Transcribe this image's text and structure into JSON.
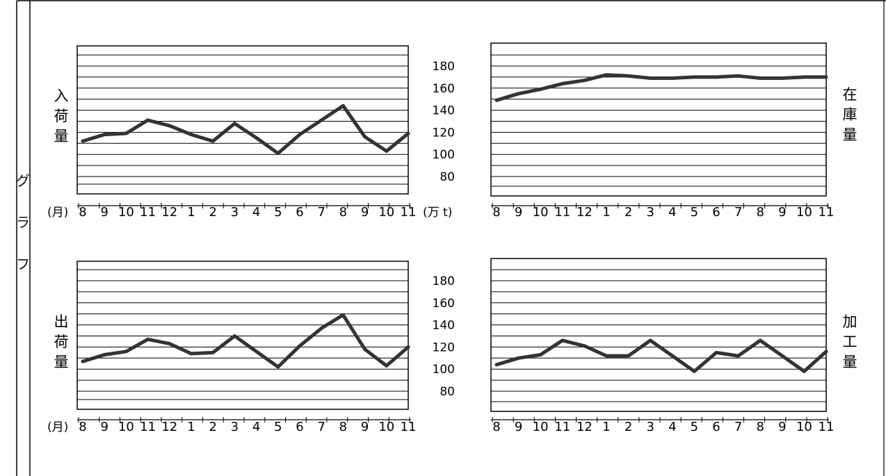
{
  "side_label": [
    "グ",
    "ラ",
    "フ"
  ],
  "shared": {
    "months": [
      "8",
      "9",
      "10",
      "11",
      "12",
      "1",
      "2",
      "3",
      "4",
      "5",
      "6",
      "7",
      "8",
      "9",
      "10",
      "11"
    ],
    "month_unit": "(月)",
    "ton_unit": "(万 t)",
    "yticks": [
      "180",
      "160",
      "140",
      "120",
      "100",
      "80"
    ]
  },
  "chart_data": [
    {
      "type": "line",
      "title_vertical": [
        "入",
        "荷",
        "量"
      ],
      "x": [
        "8",
        "9",
        "10",
        "11",
        "12",
        "1",
        "2",
        "3",
        "4",
        "5",
        "6",
        "7",
        "8",
        "9",
        "10",
        "11"
      ],
      "series": [
        {
          "values": [
            112,
            118,
            119,
            131,
            126,
            118,
            112,
            128,
            115,
            101,
            118,
            131,
            144,
            116,
            103,
            119
          ]
        }
      ],
      "ylim": [
        70,
        200
      ],
      "grid": true
    },
    {
      "type": "line",
      "title_vertical": [
        "在",
        "庫",
        "量"
      ],
      "x": [
        "8",
        "9",
        "10",
        "11",
        "12",
        "1",
        "2",
        "3",
        "4",
        "5",
        "6",
        "7",
        "8",
        "9",
        "10",
        "11"
      ],
      "series": [
        {
          "values": [
            149,
            155,
            159,
            164,
            167,
            172,
            171,
            169,
            169,
            170,
            170,
            171,
            169,
            169,
            170,
            170
          ]
        }
      ],
      "ylim": [
        70,
        200
      ],
      "grid": true
    },
    {
      "type": "line",
      "title_vertical": [
        "出",
        "荷",
        "量"
      ],
      "x": [
        "8",
        "9",
        "10",
        "11",
        "12",
        "1",
        "2",
        "3",
        "4",
        "5",
        "6",
        "7",
        "8",
        "9",
        "10",
        "11"
      ],
      "series": [
        {
          "values": [
            107,
            113,
            116,
            127,
            123,
            114,
            115,
            130,
            116,
            102,
            121,
            137,
            149,
            118,
            103,
            120
          ]
        }
      ],
      "ylim": [
        70,
        200
      ],
      "grid": true
    },
    {
      "type": "line",
      "title_vertical": [
        "加",
        "工",
        "量"
      ],
      "x": [
        "8",
        "9",
        "10",
        "11",
        "12",
        "1",
        "2",
        "3",
        "4",
        "5",
        "6",
        "7",
        "8",
        "9",
        "10",
        "11"
      ],
      "series": [
        {
          "values": [
            104,
            110,
            113,
            126,
            121,
            112,
            112,
            126,
            112,
            98,
            115,
            112,
            126,
            112,
            98,
            116
          ]
        }
      ],
      "ylim": [
        70,
        200
      ],
      "grid": true
    }
  ]
}
